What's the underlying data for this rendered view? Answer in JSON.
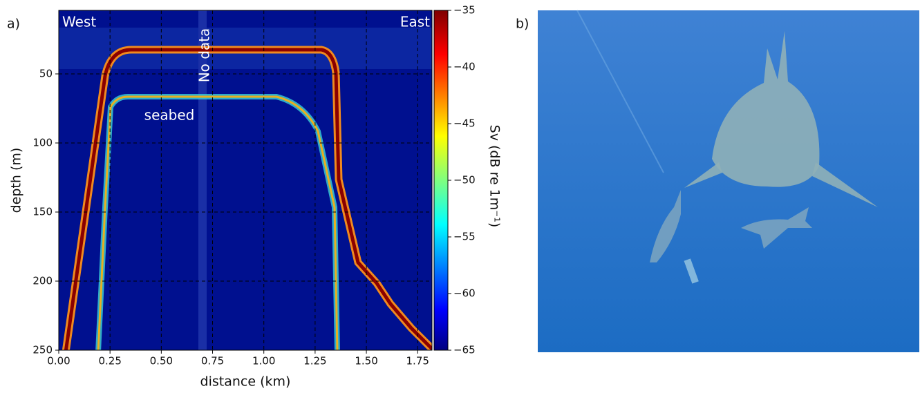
{
  "panel_labels": [
    "a)",
    "b)"
  ],
  "chart_data": {
    "type": "echogram",
    "xlabel": "distance (km)",
    "ylabel": "depth (m)",
    "xlim": [
      0,
      1.82
    ],
    "ylim": [
      250,
      4
    ],
    "xticks": [
      {
        "value": 0,
        "label": "0.00"
      },
      {
        "value": 0.25,
        "label": "0.25"
      },
      {
        "value": 0.5,
        "label": "0.50"
      },
      {
        "value": 0.75,
        "label": "0.75"
      },
      {
        "value": 1,
        "label": "1.00"
      },
      {
        "value": 1.25,
        "label": "1.25"
      },
      {
        "value": 1.5,
        "label": "1.50"
      },
      {
        "value": 1.75,
        "label": "1.75"
      }
    ],
    "yticks": [
      50,
      100,
      150,
      200,
      250
    ],
    "grid": true,
    "clim": [
      -65,
      -35
    ],
    "cticks": [
      {
        "value": -35,
        "label": "−35"
      },
      {
        "value": -40,
        "label": "−40"
      },
      {
        "value": -45,
        "label": "−45"
      },
      {
        "value": -50,
        "label": "−50"
      },
      {
        "value": -55,
        "label": "−55"
      },
      {
        "value": -60,
        "label": "−60"
      },
      {
        "value": -65,
        "label": "−65"
      }
    ],
    "clabel": "Sv (dB re 1m⁻¹)",
    "annotations": [
      "West",
      "East",
      "No data",
      "seabed"
    ]
  }
}
